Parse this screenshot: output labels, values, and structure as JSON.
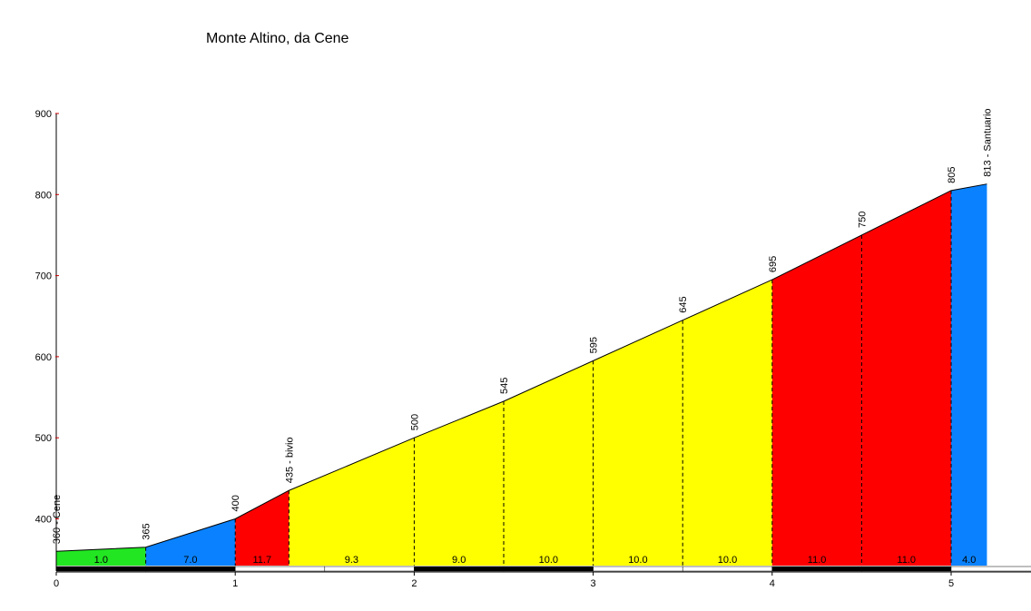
{
  "chart_data": {
    "type": "area",
    "title": "Monte Altino, da Cene",
    "xlim": [
      0,
      5.5
    ],
    "ylim": [
      340,
      900
    ],
    "y_ticks": [
      400,
      500,
      600,
      700,
      800,
      900
    ],
    "x_ticks": [
      0,
      1,
      2,
      3,
      4,
      5
    ],
    "points": [
      {
        "x": 0.0,
        "y": 360,
        "label": "360 - Cene"
      },
      {
        "x": 0.5,
        "y": 365,
        "label": "365"
      },
      {
        "x": 1.0,
        "y": 400,
        "label": "400"
      },
      {
        "x": 1.3,
        "y": 435,
        "label": "435 - bivio"
      },
      {
        "x": 2.0,
        "y": 500,
        "label": "500"
      },
      {
        "x": 2.5,
        "y": 545,
        "label": "545"
      },
      {
        "x": 3.0,
        "y": 595,
        "label": "595"
      },
      {
        "x": 3.5,
        "y": 645,
        "label": "645"
      },
      {
        "x": 4.0,
        "y": 695,
        "label": "695"
      },
      {
        "x": 4.5,
        "y": 750,
        "label": "750"
      },
      {
        "x": 5.0,
        "y": 805,
        "label": "805"
      },
      {
        "x": 5.2,
        "y": 813,
        "label": "813 - Santuario"
      }
    ],
    "segments": [
      {
        "from": 0.0,
        "to": 0.5,
        "gradient": "1.0",
        "color": "#22e622"
      },
      {
        "from": 0.5,
        "to": 1.0,
        "gradient": "7.0",
        "color": "#0a82ff"
      },
      {
        "from": 1.0,
        "to": 1.3,
        "gradient": "11.7",
        "color": "#ff0000"
      },
      {
        "from": 1.3,
        "to": 2.0,
        "gradient": "9.3",
        "color": "#ffff00"
      },
      {
        "from": 2.0,
        "to": 2.5,
        "gradient": "9.0",
        "color": "#ffff00"
      },
      {
        "from": 2.5,
        "to": 3.0,
        "gradient": "10.0",
        "color": "#ffff00"
      },
      {
        "from": 3.0,
        "to": 3.5,
        "gradient": "10.0",
        "color": "#ffff00"
      },
      {
        "from": 3.5,
        "to": 4.0,
        "gradient": "10.0",
        "color": "#ffff00"
      },
      {
        "from": 4.0,
        "to": 4.5,
        "gradient": "11.0",
        "color": "#ff0000"
      },
      {
        "from": 4.5,
        "to": 5.0,
        "gradient": "11.0",
        "color": "#ff0000"
      },
      {
        "from": 5.0,
        "to": 5.2,
        "gradient": "4.0",
        "color": "#0a82ff"
      }
    ],
    "grid": false,
    "legend": "none"
  }
}
